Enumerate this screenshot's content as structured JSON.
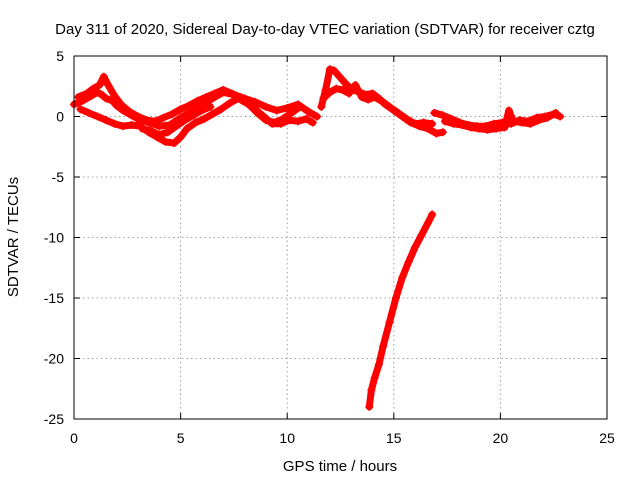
{
  "chart_data": {
    "type": "scatter",
    "title": "Day 311 of 2020, Sidereal Day-to-day VTEC variation (SDTVAR) for receiver cztg",
    "xlabel": "GPS time / hours",
    "ylabel": "SDTVAR / TECUs",
    "xlim": [
      0,
      25
    ],
    "ylim": [
      -25,
      5
    ],
    "xticks": [
      0,
      5,
      10,
      15,
      20,
      25
    ],
    "yticks": [
      5,
      0,
      -5,
      -10,
      -15,
      -20,
      -25
    ],
    "grid": true,
    "marker": "plus",
    "series": [
      {
        "name": "SDTVAR",
        "color": "#ff0000",
        "tracks": [
          [
            [
              0.0,
              1.0
            ],
            [
              0.4,
              1.3
            ],
            [
              0.8,
              1.7
            ],
            [
              1.1,
              2.0
            ],
            [
              1.3,
              1.8
            ],
            [
              1.5,
              1.5
            ],
            [
              1.8,
              1.3
            ],
            [
              2.0,
              0.9
            ],
            [
              2.3,
              0.5
            ],
            [
              2.6,
              0.2
            ],
            [
              3.0,
              -0.2
            ],
            [
              3.5,
              -0.5
            ],
            [
              4.0,
              -0.8
            ],
            [
              4.5,
              -0.7
            ],
            [
              5.0,
              -0.1
            ],
            [
              5.5,
              0.4
            ],
            [
              6.0,
              0.9
            ],
            [
              6.5,
              1.5
            ],
            [
              7.0,
              2.0
            ],
            [
              7.5,
              1.8
            ],
            [
              8.0,
              1.5
            ],
            [
              8.5,
              1.2
            ],
            [
              9.0,
              0.8
            ],
            [
              9.5,
              0.5
            ],
            [
              10.0,
              0.7
            ],
            [
              10.5,
              1.0
            ],
            [
              11.0,
              0.4
            ],
            [
              11.4,
              0.0
            ]
          ],
          [
            [
              0.2,
              1.6
            ],
            [
              0.6,
              1.9
            ],
            [
              0.9,
              2.3
            ],
            [
              1.2,
              2.6
            ],
            [
              1.4,
              3.3
            ],
            [
              1.6,
              2.6
            ],
            [
              1.9,
              1.7
            ],
            [
              2.2,
              1.0
            ],
            [
              2.6,
              0.4
            ],
            [
              3.0,
              0.0
            ],
            [
              3.4,
              -0.3
            ],
            [
              3.8,
              -0.4
            ],
            [
              4.2,
              -0.1
            ],
            [
              4.6,
              0.2
            ],
            [
              5.0,
              0.6
            ],
            [
              5.4,
              0.9
            ],
            [
              5.8,
              1.3
            ],
            [
              6.2,
              1.6
            ],
            [
              6.6,
              1.9
            ],
            [
              7.0,
              2.2
            ],
            [
              7.4,
              1.9
            ],
            [
              7.8,
              1.6
            ],
            [
              8.2,
              1.0
            ],
            [
              8.6,
              0.3
            ],
            [
              9.0,
              -0.3
            ],
            [
              9.4,
              -0.5
            ],
            [
              9.8,
              -0.2
            ],
            [
              10.2,
              0.3
            ],
            [
              10.6,
              0.8
            ]
          ],
          [
            [
              0.3,
              0.6
            ],
            [
              0.7,
              0.3
            ],
            [
              1.1,
              0.0
            ],
            [
              1.5,
              -0.3
            ],
            [
              1.9,
              -0.6
            ],
            [
              2.3,
              -0.8
            ],
            [
              2.7,
              -0.7
            ],
            [
              3.1,
              -0.8
            ],
            [
              3.5,
              -1.3
            ],
            [
              3.9,
              -1.7
            ],
            [
              4.3,
              -2.1
            ],
            [
              4.7,
              -2.2
            ],
            [
              5.0,
              -1.7
            ],
            [
              5.3,
              -1.0
            ],
            [
              5.7,
              -0.5
            ],
            [
              6.1,
              -0.2
            ],
            [
              6.5,
              0.2
            ],
            [
              6.9,
              0.6
            ],
            [
              7.3,
              1.1
            ],
            [
              7.7,
              1.5
            ],
            [
              8.1,
              1.1
            ],
            [
              8.5,
              0.6
            ],
            [
              8.9,
              0.0
            ],
            [
              9.3,
              -0.6
            ],
            [
              9.7,
              -0.6
            ],
            [
              10.1,
              -0.3
            ],
            [
              10.5,
              -0.4
            ],
            [
              10.9,
              -0.2
            ],
            [
              11.2,
              -0.5
            ]
          ],
          [
            [
              3.2,
              -1.0
            ],
            [
              3.6,
              -1.2
            ],
            [
              4.0,
              -1.5
            ],
            [
              4.4,
              -1.3
            ],
            [
              4.8,
              -0.8
            ],
            [
              5.2,
              -0.3
            ],
            [
              5.6,
              0.1
            ],
            [
              6.0,
              0.5
            ],
            [
              6.4,
              0.8
            ]
          ],
          [
            [
              11.6,
              0.8
            ],
            [
              11.8,
              2.2
            ],
            [
              12.0,
              3.9
            ],
            [
              12.2,
              3.8
            ],
            [
              12.5,
              3.2
            ],
            [
              12.8,
              2.6
            ],
            [
              13.1,
              2.2
            ],
            [
              13.4,
              2.0
            ],
            [
              13.7,
              1.8
            ],
            [
              14.0,
              1.9
            ],
            [
              14.3,
              1.5
            ],
            [
              14.6,
              1.0
            ],
            [
              15.0,
              0.5
            ],
            [
              15.4,
              0.0
            ],
            [
              15.8,
              -0.5
            ],
            [
              16.2,
              -0.8
            ],
            [
              16.6,
              -1.0
            ],
            [
              17.0,
              -1.4
            ],
            [
              17.3,
              -1.3
            ]
          ],
          [
            [
              11.7,
              1.5
            ],
            [
              12.0,
              2.0
            ],
            [
              12.3,
              2.3
            ],
            [
              12.6,
              2.2
            ],
            [
              12.9,
              1.9
            ],
            [
              13.2,
              2.6
            ],
            [
              13.5,
              1.6
            ],
            [
              13.8,
              1.4
            ],
            [
              14.1,
              1.6
            ],
            [
              14.5,
              1.2
            ],
            [
              14.8,
              0.8
            ],
            [
              15.2,
              0.3
            ],
            [
              15.6,
              -0.2
            ],
            [
              16.0,
              -0.6
            ],
            [
              16.4,
              -0.5
            ],
            [
              16.8,
              -0.6
            ]
          ],
          [
            [
              16.9,
              0.3
            ],
            [
              17.3,
              0.1
            ],
            [
              17.7,
              -0.2
            ],
            [
              18.1,
              -0.5
            ],
            [
              18.5,
              -0.7
            ],
            [
              18.9,
              -0.8
            ],
            [
              19.3,
              -0.8
            ],
            [
              19.7,
              -0.6
            ],
            [
              20.1,
              -0.5
            ],
            [
              20.5,
              -0.6
            ],
            [
              20.9,
              -0.3
            ],
            [
              21.3,
              -0.4
            ],
            [
              21.7,
              -0.1
            ],
            [
              22.1,
              0.0
            ],
            [
              22.5,
              0.2
            ],
            [
              22.8,
              0.0
            ]
          ],
          [
            [
              17.4,
              -0.4
            ],
            [
              17.8,
              -0.6
            ],
            [
              18.2,
              -0.7
            ],
            [
              18.6,
              -0.9
            ],
            [
              19.0,
              -1.0
            ],
            [
              19.4,
              -1.1
            ],
            [
              19.8,
              -1.0
            ],
            [
              20.2,
              -0.9
            ],
            [
              20.4,
              0.5
            ],
            [
              20.6,
              -0.4
            ],
            [
              21.0,
              -0.5
            ],
            [
              21.4,
              -0.6
            ],
            [
              21.8,
              -0.3
            ],
            [
              22.2,
              -0.1
            ],
            [
              22.6,
              0.3
            ]
          ],
          [
            [
              13.85,
              -24.0
            ],
            [
              13.95,
              -22.6
            ],
            [
              14.1,
              -21.6
            ],
            [
              14.3,
              -20.5
            ],
            [
              14.5,
              -19.0
            ],
            [
              14.8,
              -17.0
            ],
            [
              15.1,
              -15.0
            ],
            [
              15.4,
              -13.3
            ],
            [
              15.7,
              -12.0
            ],
            [
              16.0,
              -10.8
            ],
            [
              16.3,
              -9.8
            ],
            [
              16.6,
              -8.8
            ],
            [
              16.8,
              -8.1
            ]
          ]
        ]
      }
    ]
  }
}
